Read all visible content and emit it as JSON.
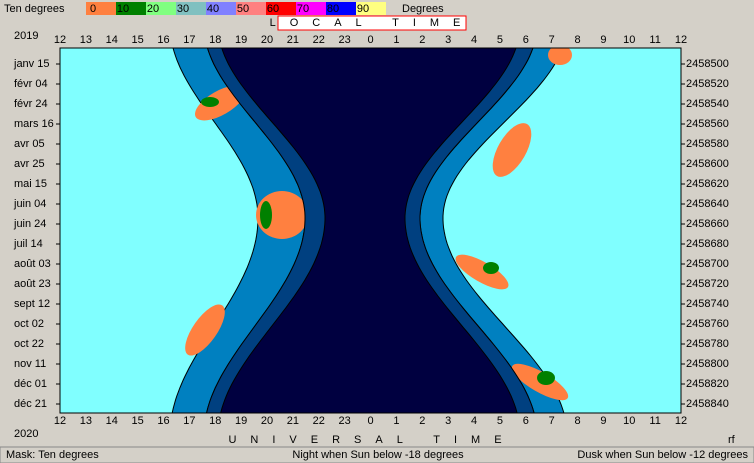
{
  "legend": {
    "title": "Ten degrees",
    "ticks": [
      "0",
      "10",
      "20",
      "30",
      "40",
      "50",
      "60",
      "70",
      "80",
      "90"
    ],
    "unit": "Degrees"
  },
  "year_top": "2019",
  "year_bottom": "2020",
  "top_axis_title": "LOCAL TIME",
  "bottom_axis_title": "UNIVERSAL TIME",
  "local_hours": [
    12,
    13,
    14,
    15,
    16,
    17,
    18,
    19,
    20,
    21,
    22,
    23,
    0,
    1,
    2,
    3,
    4,
    5,
    6,
    7,
    8,
    9,
    10,
    11,
    12
  ],
  "ut_hours": [
    12,
    13,
    14,
    15,
    16,
    17,
    18,
    19,
    20,
    21,
    22,
    23,
    0,
    1,
    2,
    3,
    4,
    5,
    6,
    7,
    8,
    9,
    10,
    11,
    12
  ],
  "dates": [
    "janv 15",
    "févr 04",
    "févr 24",
    "mars 16",
    "avr 05",
    "avr 25",
    "mai 15",
    "juin 04",
    "juin 24",
    "juil 14",
    "août 03",
    "août 23",
    "sept 12",
    "oct 02",
    "oct 22",
    "nov 11",
    "déc 01",
    "déc 21"
  ],
  "julian_days": [
    2458500,
    2458520,
    2458540,
    2458560,
    2458580,
    2458600,
    2458620,
    2458640,
    2458660,
    2458680,
    2458700,
    2458720,
    2458740,
    2458760,
    2458780,
    2458800,
    2458820,
    2458840
  ],
  "corner": "rf",
  "status": {
    "mask": "Mask:  Ten degrees",
    "night": "Night when Sun below -18 degrees",
    "dusk": "Dusk when Sun below -12 degrees"
  }
}
